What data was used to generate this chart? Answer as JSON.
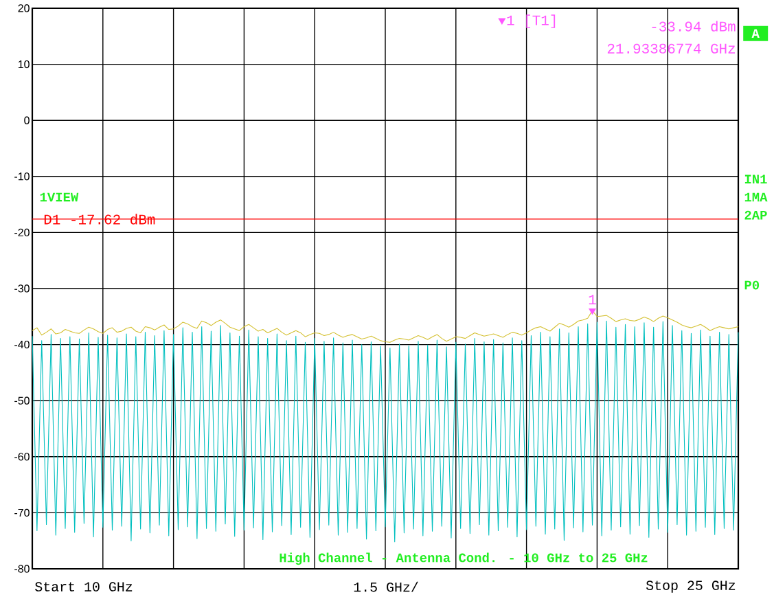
{
  "chart_data": {
    "type": "line",
    "categories": [
      null,
      null,
      null,
      null,
      null,
      null,
      null,
      null,
      null,
      null,
      null,
      null,
      null,
      null,
      null,
      null,
      null,
      null,
      null,
      null,
      null,
      null,
      null,
      null,
      null,
      null,
      null,
      null,
      null,
      null,
      null,
      null,
      null,
      null,
      null,
      null,
      null,
      null,
      null,
      null,
      null,
      null,
      null,
      null,
      null,
      null,
      null,
      null,
      null,
      null,
      null,
      null,
      null,
      null,
      null,
      null,
      null,
      null,
      null,
      null,
      null,
      null,
      null,
      null,
      null,
      null,
      null,
      null,
      null,
      null,
      null,
      null,
      null,
      null,
      null,
      null,
      null,
      null,
      null,
      null,
      null,
      null,
      null,
      null,
      null,
      null,
      null,
      null,
      null,
      null,
      null,
      null,
      null,
      null,
      null,
      null,
      null,
      null,
      null,
      null,
      null,
      null,
      null,
      null,
      null,
      null,
      null,
      null,
      null,
      null,
      null,
      null,
      null,
      null,
      null,
      null,
      null,
      null,
      null,
      null,
      null,
      null,
      null,
      null,
      null,
      null,
      null,
      null,
      null,
      null,
      null,
      null,
      null,
      null,
      null,
      null,
      null,
      null,
      null,
      null,
      null,
      null,
      null,
      null,
      null,
      null,
      null,
      null,
      null,
      null,
      null
    ],
    "ylim": [
      -80,
      20
    ],
    "yticks": [
      -80,
      -70,
      -60,
      -50,
      -40,
      -30,
      -20,
      -10,
      0,
      10,
      20
    ],
    "grid": true,
    "line_style": "solid",
    "series": [
      {
        "color": "#00bfbf",
        "values": [
          -38.5,
          -73.2,
          -39.3,
          -72.1,
          -38.2,
          -74.0,
          -38.9,
          -72.8,
          -38.6,
          -73.5,
          -39.0,
          -71.9,
          -37.9,
          -74.3,
          -38.7,
          -72.6,
          -38.3,
          -73.1,
          -38.8,
          -72.4,
          -38.1,
          -75.0,
          -38.6,
          -72.9,
          -37.8,
          -73.6,
          -38.4,
          -72.2,
          -37.5,
          -74.1,
          -38.2,
          -73.0,
          -37.0,
          -72.5,
          -37.8,
          -74.6,
          -36.8,
          -72.8,
          -37.6,
          -73.3,
          -36.6,
          -72.0,
          -37.9,
          -74.2,
          -38.5,
          -73.1,
          -37.4,
          -72.7,
          -38.6,
          -74.8,
          -38.9,
          -73.4,
          -38.1,
          -72.3,
          -39.3,
          -73.9,
          -38.5,
          -72.6,
          -39.6,
          -74.4,
          -38.9,
          -73.0,
          -39.4,
          -72.2,
          -38.8,
          -74.0,
          -39.7,
          -73.5,
          -39.2,
          -72.8,
          -40.0,
          -74.7,
          -39.5,
          -73.2,
          -40.3,
          -72.5,
          -40.6,
          -75.2,
          -39.9,
          -73.6,
          -40.2,
          -72.9,
          -39.4,
          -74.1,
          -40.1,
          -73.3,
          -39.2,
          -72.4,
          -40.4,
          -74.5,
          -39.6,
          -72.8,
          -39.9,
          -73.7,
          -38.9,
          -72.1,
          -39.5,
          -74.0,
          -39.1,
          -73.2,
          -39.7,
          -72.6,
          -38.8,
          -74.3,
          -39.3,
          -73.0,
          -38.4,
          -72.4,
          -37.8,
          -73.8,
          -38.6,
          -72.9,
          -37.2,
          -74.9,
          -37.9,
          -72.7,
          -36.8,
          -73.4,
          -36.3,
          -72.2,
          -36.0,
          -74.1,
          -35.8,
          -73.1,
          -36.9,
          -72.5,
          -36.4,
          -73.8,
          -36.8,
          -72.3,
          -36.1,
          -74.4,
          -36.9,
          -72.9,
          -35.9,
          -73.5,
          -36.6,
          -72.1,
          -37.5,
          -74.0,
          -38.0,
          -73.3,
          -37.4,
          -72.6,
          -38.5,
          -73.9,
          -37.8,
          -72.8,
          -38.2,
          -73.1,
          -37.8
        ]
      },
      {
        "color": "#d4c030",
        "values": [
          -37.5,
          -37.0,
          -38.3,
          -37.8,
          -37.2,
          -38.1,
          -37.9,
          -37.3,
          -37.6,
          -37.9,
          -38.0,
          -37.4,
          -36.9,
          -37.2,
          -37.7,
          -38.0,
          -37.3,
          -37.0,
          -37.8,
          -37.6,
          -37.1,
          -36.9,
          -37.6,
          -37.9,
          -36.8,
          -37.0,
          -37.4,
          -36.9,
          -36.5,
          -37.3,
          -37.2,
          -36.7,
          -36.0,
          -36.3,
          -36.8,
          -37.1,
          -35.8,
          -36.1,
          -36.6,
          -36.0,
          -35.6,
          -36.2,
          -36.9,
          -37.2,
          -37.5,
          -36.8,
          -36.4,
          -37.0,
          -37.6,
          -37.3,
          -37.9,
          -37.5,
          -37.1,
          -37.8,
          -38.3,
          -37.9,
          -37.5,
          -37.9,
          -38.6,
          -38.2,
          -37.9,
          -38.0,
          -38.4,
          -38.2,
          -37.8,
          -38.3,
          -38.7,
          -38.4,
          -38.2,
          -38.6,
          -39.0,
          -38.8,
          -38.5,
          -38.9,
          -39.3,
          -39.5,
          -39.6,
          -39.2,
          -38.9,
          -39.0,
          -39.2,
          -38.8,
          -38.4,
          -38.7,
          -39.1,
          -38.6,
          -38.2,
          -38.9,
          -39.4,
          -39.0,
          -38.6,
          -38.7,
          -38.9,
          -38.4,
          -37.9,
          -38.2,
          -38.5,
          -38.3,
          -38.1,
          -38.4,
          -38.7,
          -38.2,
          -37.8,
          -38.0,
          -38.3,
          -37.9,
          -37.4,
          -37.0,
          -36.8,
          -37.2,
          -37.6,
          -36.9,
          -36.2,
          -36.5,
          -36.9,
          -36.4,
          -35.8,
          -35.6,
          -35.3,
          -33.94,
          -35.0,
          -34.9,
          -34.8,
          -35.3,
          -35.9,
          -35.6,
          -35.4,
          -35.7,
          -35.8,
          -35.5,
          -35.1,
          -35.4,
          -35.9,
          -35.3,
          -34.9,
          -35.2,
          -35.6,
          -36.0,
          -36.5,
          -36.8,
          -37.0,
          -36.7,
          -36.4,
          -36.9,
          -37.5,
          -37.1,
          -36.8,
          -37.0,
          -37.2,
          -37.0,
          -36.8
        ]
      },
      {
        "type": "scatter",
        "name": "1 [T1]",
        "marker": "triangle",
        "color": "#ff55ff",
        "values": [
          null,
          null,
          null,
          null,
          null,
          null,
          null,
          null,
          null,
          null,
          null,
          null,
          null,
          null,
          null,
          null,
          null,
          null,
          null,
          null,
          null,
          null,
          null,
          null,
          null,
          null,
          null,
          null,
          null,
          null,
          null,
          null,
          null,
          null,
          null,
          null,
          null,
          null,
          null,
          null,
          null,
          null,
          null,
          null,
          null,
          null,
          null,
          null,
          null,
          null,
          null,
          null,
          null,
          null,
          null,
          null,
          null,
          null,
          null,
          null,
          null,
          null,
          null,
          null,
          null,
          null,
          null,
          null,
          null,
          null,
          null,
          null,
          null,
          null,
          null,
          null,
          null,
          null,
          null,
          null,
          null,
          null,
          null,
          null,
          null,
          null,
          null,
          null,
          null,
          null,
          null,
          null,
          null,
          null,
          null,
          null,
          null,
          null,
          null,
          null,
          null,
          null,
          null,
          null,
          null,
          null,
          null,
          null,
          null,
          null,
          null,
          null,
          null,
          null,
          null,
          null,
          null,
          null,
          null,
          -33.94,
          null,
          null,
          null,
          null,
          null,
          null,
          null,
          null,
          null,
          null,
          null,
          null,
          null,
          null,
          null,
          null,
          null,
          null,
          null,
          null,
          null,
          null,
          null,
          null,
          null,
          null,
          null,
          null,
          null,
          null,
          null
        ]
      }
    ],
    "legend": "top right",
    "ref_lines": [
      {
        "axis": "y",
        "value": -17.62,
        "label": "D1 -17.62 dBm",
        "color": "#ff0000"
      }
    ],
    "annotations": [
      "1",
      "-33.94 dBm",
      "21.93386774 GHz",
      "A",
      "1VIEW",
      "IN1",
      "1MA",
      "2AP",
      "P0",
      "High Channel - Antenna Cond. - 10 GHz to 25 GHz",
      "Start 10 GHz",
      "1.5 GHz/",
      "Stop 25 GHz"
    ]
  }
}
